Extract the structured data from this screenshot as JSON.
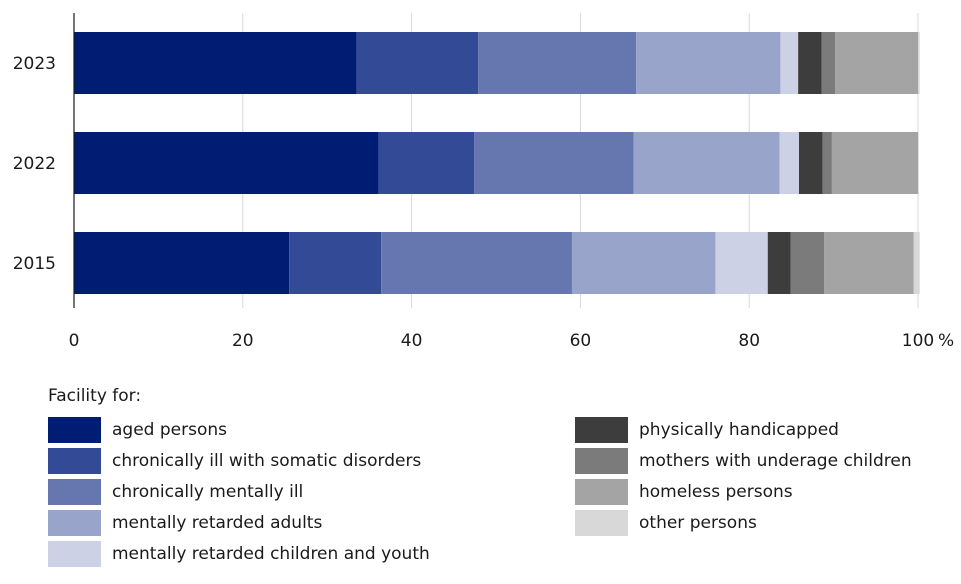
{
  "chart_data": {
    "type": "bar",
    "orientation": "horizontal",
    "stacked": true,
    "categories": [
      "2023",
      "2022",
      "2015"
    ],
    "series": [
      {
        "name": "aged persons",
        "values": [
          33.5,
          36.1,
          25.5
        ],
        "color": "#001d74"
      },
      {
        "name": "chronically ill with somatic disorders",
        "values": [
          14.4,
          11.3,
          10.9
        ],
        "color": "#334a96"
      },
      {
        "name": "chronically mentally ill",
        "values": [
          18.7,
          18.9,
          22.6
        ],
        "color": "#6677b0"
      },
      {
        "name": "mentally retarded adults",
        "values": [
          17.1,
          17.3,
          17.0
        ],
        "color": "#99a4ca"
      },
      {
        "name": "mentally retarded children and youth",
        "values": [
          2.1,
          2.3,
          6.2
        ],
        "color": "#ccd1e5"
      },
      {
        "name": "physically handicapped",
        "values": [
          2.8,
          2.8,
          2.7
        ],
        "color": "#3d3d3d"
      },
      {
        "name": "mothers with underage children",
        "values": [
          1.6,
          1.1,
          4.0
        ],
        "color": "#7b7b7b"
      },
      {
        "name": "homeless persons",
        "values": [
          9.8,
          10.2,
          10.6
        ],
        "color": "#a4a4a4"
      },
      {
        "name": "other persons",
        "values": [
          0.2,
          0.1,
          0.7
        ],
        "color": "#d8d8d8"
      }
    ],
    "xlim": [
      0,
      100
    ],
    "xticks": [
      0,
      20,
      40,
      60,
      80,
      100
    ],
    "xtick_labels": [
      "0",
      "20",
      "40",
      "60",
      "80",
      "100"
    ],
    "x_unit": "%",
    "grid": "vertical",
    "legend_title": "Facility for:",
    "legend_position": "bottom"
  }
}
